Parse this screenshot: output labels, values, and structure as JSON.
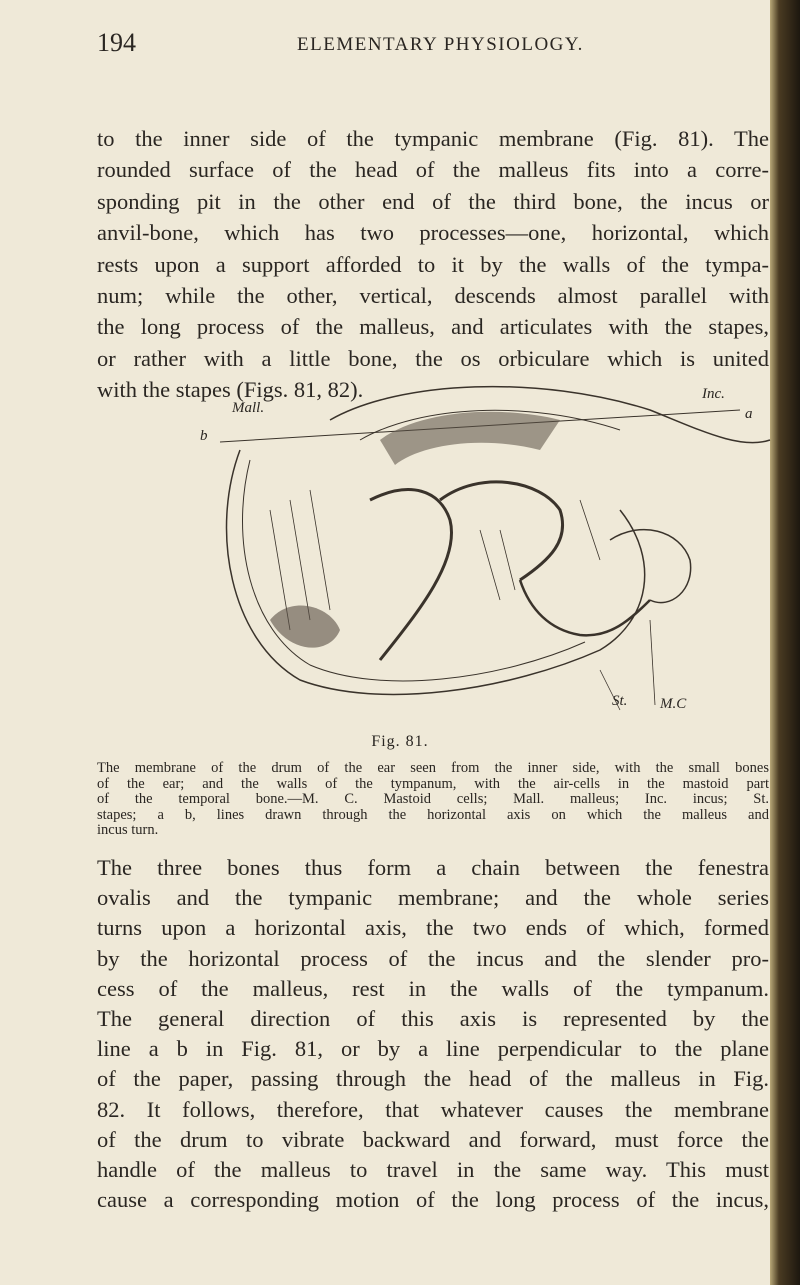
{
  "header": {
    "page_number": "194",
    "running_title": "ELEMENTARY PHYSIOLOGY."
  },
  "paragraph_1": [
    "to the inner side of the tympanic membrane (Fig. 81). The",
    "rounded surface of the head of the malleus fits into a corre-",
    "sponding pit in the other end of the third bone, the incus or",
    "anvil-bone, which has two processes—one, horizontal, which",
    "rests upon a support afforded to it by the walls of the tympa-",
    "num; while the other, vertical, descends almost parallel with",
    "the long process of the malleus, and articulates with the stapes,",
    "or rather with a little bone, the os orbiculare which is united",
    "with the stapes (Figs. 81, 82)."
  ],
  "figure": {
    "labels": [
      "Mall.",
      "Inc.",
      "a",
      "b",
      "St.",
      "M.C"
    ],
    "number": "Fig. 81.",
    "caption": [
      "The membrane of the drum of the ear seen from the inner side, with the small bones",
      "of the ear; and the walls of the tympanum, with the air-cells in the mastoid part",
      "of the temporal bone.—M. C. Mastoid cells; Mall. malleus; Inc. incus; St.",
      "stapes; a b, lines drawn through the horizontal axis on which the malleus and",
      "incus turn."
    ]
  },
  "paragraph_2": [
    "The three bones thus form a chain between the fenestra",
    "ovalis and the tympanic membrane; and the whole series",
    "turns upon a horizontal axis, the two ends of which, formed",
    "by the horizontal process of the incus and the slender pro-",
    "cess of the malleus, rest in the walls of the tympanum.",
    "The general direction of this axis is represented by the",
    "line a b in Fig. 81, or by a line perpendicular to the plane",
    "of the paper, passing through the head of the malleus in Fig.",
    "82. It follows, therefore, that whatever causes the membrane",
    "of the drum to vibrate backward and forward, must force the",
    "handle of the malleus to travel in the same way. This must",
    "cause a corresponding motion of the long process of the incus,"
  ]
}
